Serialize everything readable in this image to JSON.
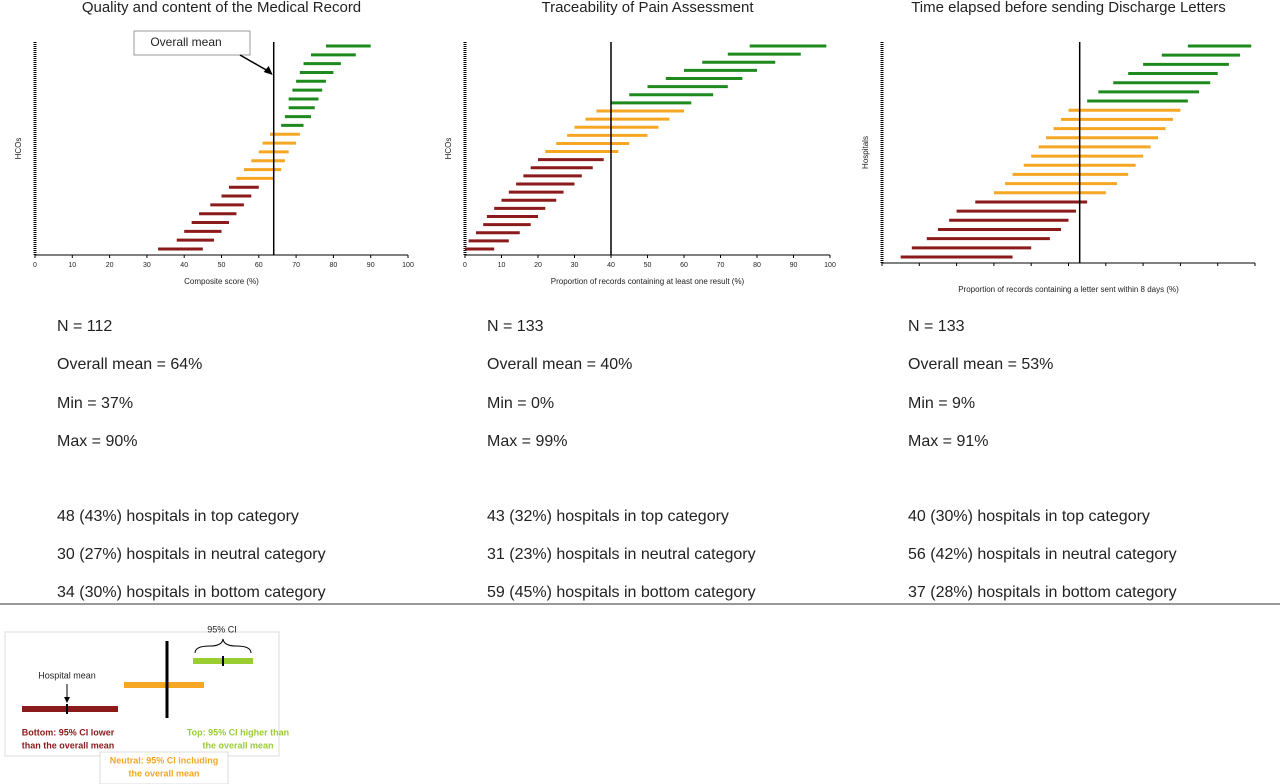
{
  "chart_data": [
    {
      "type": "interval",
      "title": "Quality and content of the Medical Record",
      "x_label": "Composite score (%)",
      "y_label": "HCOs",
      "xlim": [
        0,
        100
      ],
      "xticks": [
        0,
        10,
        20,
        30,
        40,
        50,
        60,
        70,
        80,
        90,
        100
      ],
      "mean": 64,
      "annotation": "Overall mean",
      "series": [
        {
          "color": "#8b1a1a",
          "low": [
            33,
            38,
            40,
            42,
            44,
            47,
            50,
            52
          ],
          "high": [
            45,
            48,
            50,
            52,
            54,
            56,
            58,
            60
          ]
        },
        {
          "color": "#f5a623",
          "low": [
            54,
            56,
            58,
            60,
            61,
            63
          ],
          "high": [
            64,
            66,
            67,
            68,
            70,
            71
          ]
        },
        {
          "color": "#1e8a1e",
          "low": [
            66,
            67,
            68,
            68,
            69,
            70,
            71,
            72,
            74,
            78
          ],
          "high": [
            72,
            74,
            75,
            76,
            77,
            78,
            80,
            82,
            86,
            90
          ]
        }
      ]
    },
    {
      "type": "interval",
      "title": "Traceability of Pain Assessment",
      "x_label": "Proportion of records containing at least one result (%)",
      "y_label": "HCOs",
      "xlim": [
        0,
        100
      ],
      "xticks": [
        0,
        10,
        20,
        30,
        40,
        50,
        60,
        70,
        80,
        90,
        100
      ],
      "mean": 40,
      "series": [
        {
          "color": "#8b1a1a",
          "low": [
            0,
            1,
            3,
            5,
            6,
            8,
            10,
            12,
            14,
            16,
            18,
            20
          ],
          "high": [
            8,
            12,
            15,
            18,
            20,
            22,
            25,
            27,
            30,
            32,
            35,
            38
          ]
        },
        {
          "color": "#f5a623",
          "low": [
            22,
            25,
            28,
            30,
            33,
            36
          ],
          "high": [
            42,
            45,
            50,
            53,
            56,
            60
          ]
        },
        {
          "color": "#1e8a1e",
          "low": [
            40,
            45,
            50,
            55,
            60,
            65,
            72,
            78
          ],
          "high": [
            62,
            68,
            72,
            76,
            80,
            85,
            92,
            99
          ]
        }
      ]
    },
    {
      "type": "interval",
      "title": "Time elapsed before sending Discharge Letters",
      "x_label": "Proportion of records containing a letter sent within 8 days (%)",
      "y_label": "Hospitals",
      "xlim": [
        0,
        100
      ],
      "mean": 53,
      "series": [
        {
          "color": "#8b1a1a",
          "low": [
            5,
            8,
            12,
            15,
            18,
            20,
            25
          ],
          "high": [
            35,
            40,
            45,
            48,
            50,
            52,
            55
          ]
        },
        {
          "color": "#f5a623",
          "low": [
            30,
            33,
            35,
            38,
            40,
            42,
            44,
            46,
            48,
            50
          ],
          "high": [
            60,
            63,
            66,
            68,
            70,
            72,
            74,
            76,
            78,
            80
          ]
        },
        {
          "color": "#1e8a1e",
          "low": [
            55,
            58,
            62,
            66,
            70,
            75,
            82
          ],
          "high": [
            82,
            85,
            88,
            90,
            93,
            96,
            99
          ]
        }
      ]
    }
  ],
  "stats": [
    [
      "N = 112",
      "Overall mean = 64%",
      "Min = 37%",
      "Max = 90%",
      "48 (43%) hospitals in top category",
      "30 (27%) hospitals in neutral category",
      "34 (30%) hospitals in bottom category"
    ],
    [
      "N = 133",
      "Overall mean = 40%",
      "Min = 0%",
      "Max = 99%",
      "43 (32%) hospitals in top category",
      "31 (23%) hospitals in neutral category",
      "59 (45%) hospitals in bottom category"
    ],
    [
      "N = 133",
      "Overall mean = 53%",
      "Min = 9%",
      "Max = 91%",
      "40 (30%) hospitals in top category",
      "56 (42%) hospitals in neutral category",
      "37 (28%) hospitals in bottom category"
    ]
  ],
  "legend": {
    "ci": "95% CI",
    "hospital_mean": "Hospital mean",
    "bottom": [
      "Bottom: 95% CI lower",
      "than the overall mean"
    ],
    "top": [
      "Top: 95% CI higher than",
      "the overall mean"
    ],
    "neutral": [
      "Neutral: 95% CI including",
      "the overall mean"
    ]
  }
}
